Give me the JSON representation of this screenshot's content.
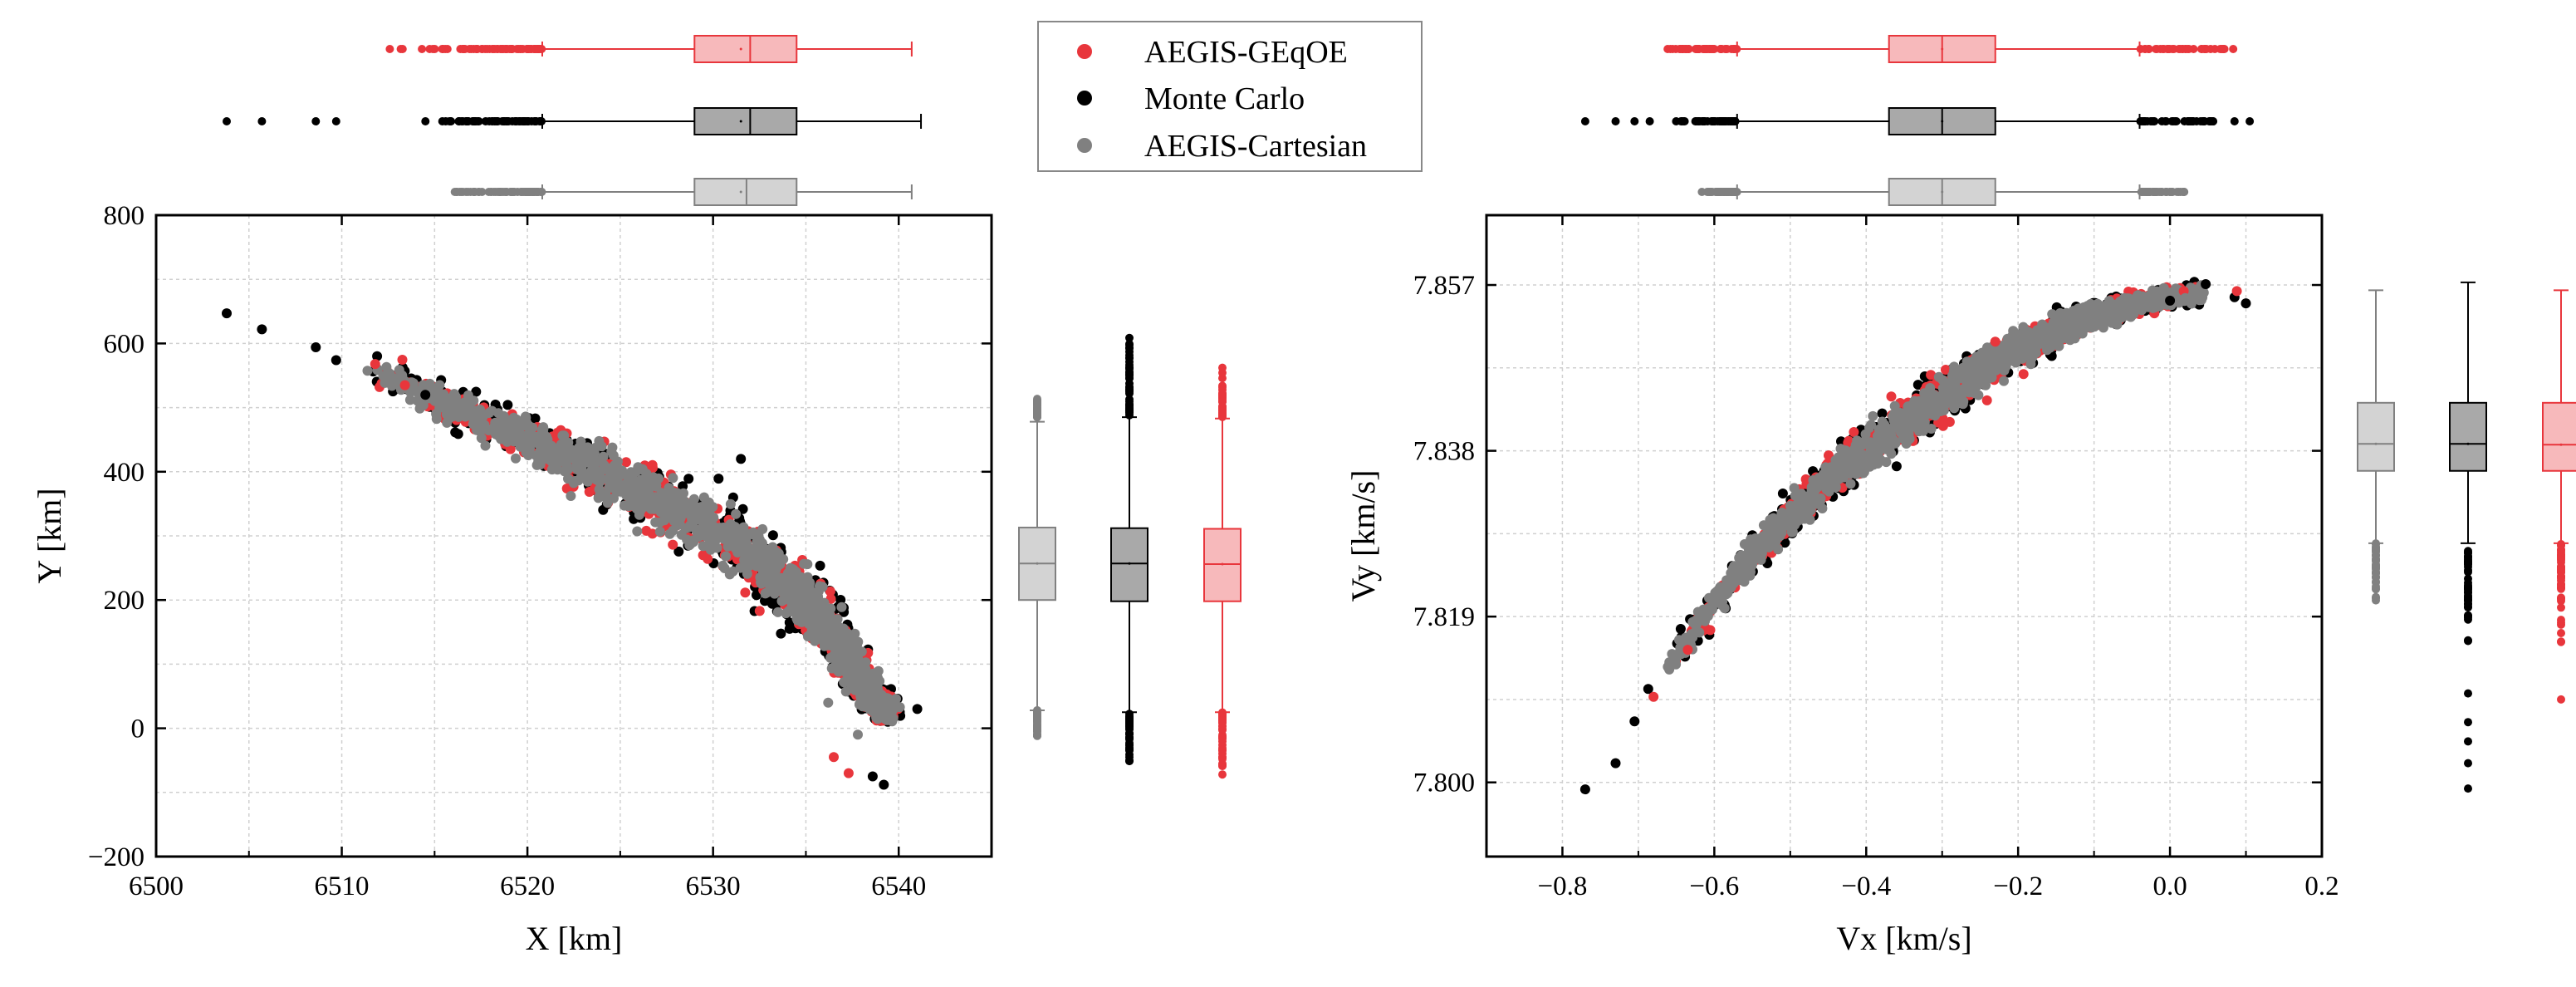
{
  "colors": {
    "geqoe": "#e8363c",
    "geqoe_light": "#f7b9bb",
    "monte_carlo": "#000000",
    "monte_carlo_light": "#a9a9a9",
    "cartesian": "#808080",
    "cartesian_light": "#d3d3d3"
  },
  "legend": {
    "entries": [
      {
        "key": "geqoe",
        "label": "AEGIS-GEqOE"
      },
      {
        "key": "monte_carlo",
        "label": "Monte Carlo"
      },
      {
        "key": "cartesian",
        "label": "AEGIS-Cartesian"
      }
    ]
  },
  "chart_data": [
    {
      "type": "scatter",
      "id": "position",
      "title": "",
      "xlabel": "X [km]",
      "ylabel": "Y [km]",
      "xlim": [
        6500,
        6545
      ],
      "ylim": [
        -200,
        800
      ],
      "xticks": [
        "6500",
        "6510",
        "6520",
        "6530",
        "6540"
      ],
      "yticks": [
        "−200",
        "0",
        "200",
        "400",
        "600",
        "800"
      ],
      "xtick_values": [
        6500,
        6510,
        6520,
        6530,
        6540
      ],
      "ytick_values": [
        -200,
        0,
        200,
        400,
        600,
        800
      ],
      "grid": true,
      "trend": [
        [
          6512,
          560
        ],
        [
          6516,
          500
        ],
        [
          6520,
          450
        ],
        [
          6524,
          400
        ],
        [
          6528,
          340
        ],
        [
          6532,
          275
        ],
        [
          6535,
          200
        ],
        [
          6537,
          120
        ],
        [
          6538.5,
          50
        ],
        [
          6539.5,
          20
        ]
      ],
      "series": [
        {
          "key": "monte_carlo",
          "name": "Monte Carlo",
          "outliers": [
            [
              6503.8,
              647
            ],
            [
              6505.7,
              622
            ],
            [
              6508.6,
              594
            ],
            [
              6509.7,
              574
            ],
            [
              6541,
              30
            ],
            [
              6538.6,
              -75
            ],
            [
              6539.2,
              -88
            ],
            [
              6514.5,
              520
            ],
            [
              6531.5,
              420
            ]
          ]
        },
        {
          "key": "geqoe",
          "name": "AEGIS-GEqOE",
          "outliers": [
            [
              6511.8,
              568
            ],
            [
              6537.3,
              -70
            ],
            [
              6536.5,
              -45
            ],
            [
              6513.4,
              535
            ]
          ]
        },
        {
          "key": "cartesian",
          "name": "AEGIS-Cartesian",
          "outliers": [
            [
              6536.2,
              40
            ],
            [
              6537.8,
              -10
            ]
          ]
        }
      ],
      "marginal_x": [
        {
          "key": "geqoe",
          "whisker_low": 6520.8,
          "q1": 6529.0,
          "median": 6532.0,
          "q3": 6534.5,
          "whisker_high": 6540.7,
          "mean": 6531.5,
          "outlier_range": [
            6511.8,
            6520.8
          ]
        },
        {
          "key": "monte_carlo",
          "whisker_low": 6520.8,
          "q1": 6529.0,
          "median": 6532.0,
          "q3": 6534.5,
          "whisker_high": 6541.2,
          "mean": 6531.5,
          "outlier_range": [
            6513.0,
            6520.8
          ],
          "outliers": [
            6503.8,
            6505.7,
            6508.6,
            6509.7
          ]
        },
        {
          "key": "cartesian",
          "whisker_low": 6520.8,
          "q1": 6529.0,
          "median": 6531.8,
          "q3": 6534.5,
          "whisker_high": 6540.7,
          "mean": 6531.5,
          "outlier_range": [
            6515.4,
            6520.8
          ]
        }
      ],
      "marginal_y": [
        {
          "key": "cartesian",
          "whisker_low": 28,
          "q1": 200,
          "median": 257,
          "q3": 313,
          "whisker_high": 478,
          "mean": 257,
          "outlier_high": [
            485,
            520
          ],
          "outlier_low": [
            -20,
            28
          ]
        },
        {
          "key": "monte_carlo",
          "whisker_low": 25,
          "q1": 198,
          "median": 257,
          "q3": 312,
          "whisker_high": 485,
          "mean": 257,
          "outlier_high": [
            488,
            648
          ],
          "outlier_low": [
            -92,
            25
          ]
        },
        {
          "key": "geqoe",
          "whisker_low": 25,
          "q1": 198,
          "median": 256,
          "q3": 311,
          "whisker_high": 483,
          "mean": 256,
          "outlier_high": [
            485,
            568
          ],
          "outlier_low": [
            -78,
            25
          ]
        }
      ]
    },
    {
      "type": "scatter",
      "id": "velocity",
      "title": "",
      "xlabel": "Vx [km/s]",
      "ylabel": "Vy [km/s]",
      "xlim": [
        -0.9,
        0.2
      ],
      "ylim": [
        7.7915,
        7.865
      ],
      "xticks": [
        "−0.8",
        "−0.6",
        "−0.4",
        "−0.2",
        "0.0",
        "0.2"
      ],
      "yticks": [
        "7.800",
        "7.819",
        "7.838",
        "7.857"
      ],
      "xtick_values": [
        -0.8,
        -0.6,
        -0.4,
        -0.2,
        0.0,
        0.2
      ],
      "ytick_values": [
        7.8,
        7.819,
        7.838,
        7.857
      ],
      "grid": true,
      "trend": [
        [
          -0.66,
          7.8132
        ],
        [
          -0.6,
          7.8205
        ],
        [
          -0.55,
          7.826
        ],
        [
          -0.5,
          7.8305
        ],
        [
          -0.45,
          7.8345
        ],
        [
          -0.4,
          7.838
        ],
        [
          -0.35,
          7.8412
        ],
        [
          -0.3,
          7.8442
        ],
        [
          -0.25,
          7.8472
        ],
        [
          -0.2,
          7.8498
        ],
        [
          -0.15,
          7.8518
        ],
        [
          -0.1,
          7.8534
        ],
        [
          -0.05,
          7.8547
        ],
        [
          0.0,
          7.8556
        ],
        [
          0.04,
          7.856
        ]
      ],
      "series": [
        {
          "key": "monte_carlo",
          "name": "Monte Carlo",
          "outliers": [
            [
              -0.77,
              7.7992
            ],
            [
              -0.73,
              7.8022
            ],
            [
              -0.705,
              7.807
            ],
            [
              -0.687,
              7.8107
            ],
            [
              0.047,
              7.8571
            ],
            [
              0.1,
              7.8549
            ],
            [
              0.085,
              7.8556
            ],
            [
              -0.0,
              7.8552
            ]
          ]
        },
        {
          "key": "geqoe",
          "name": "AEGIS-GEqOE",
          "outliers": [
            [
              -0.68,
              7.8098
            ],
            [
              -0.635,
              7.8152
            ],
            [
              0.088,
              7.8563
            ],
            [
              0.018,
              7.8563
            ],
            [
              -0.23,
              7.8505
            ]
          ]
        },
        {
          "key": "cartesian",
          "name": "AEGIS-Cartesian",
          "outliers": [
            [
              -0.62,
              7.8185
            ],
            [
              0.02,
              7.8555
            ]
          ]
        }
      ],
      "marginal_x": [
        {
          "key": "geqoe",
          "whisker_low": -0.57,
          "q1": -0.37,
          "median": -0.3,
          "q3": -0.23,
          "whisker_high": -0.04,
          "mean": -0.3,
          "outlier_low": [
            -0.68,
            -0.57
          ],
          "outlier_high": [
            -0.04,
            0.09
          ]
        },
        {
          "key": "monte_carlo",
          "whisker_low": -0.57,
          "q1": -0.37,
          "median": -0.3,
          "q3": -0.23,
          "whisker_high": -0.04,
          "mean": -0.3,
          "outlier_low": [
            -0.66,
            -0.57
          ],
          "outlier_high": [
            -0.04,
            0.06
          ],
          "outliers": [
            -0.77,
            -0.73,
            -0.705,
            -0.685,
            0.085,
            0.105
          ]
        },
        {
          "key": "cartesian",
          "whisker_low": -0.57,
          "q1": -0.37,
          "median": -0.3,
          "q3": -0.23,
          "whisker_high": -0.04,
          "mean": -0.3,
          "outlier_low": [
            -0.62,
            -0.57
          ],
          "outlier_high": [
            -0.04,
            0.02
          ]
        }
      ],
      "marginal_y": [
        {
          "key": "cartesian",
          "whisker_low": 7.8274,
          "q1": 7.8357,
          "median": 7.8388,
          "q3": 7.8435,
          "whisker_high": 7.8564,
          "mean": 7.8388,
          "outlier_low": [
            7.8199,
            7.8274
          ]
        },
        {
          "key": "monte_carlo",
          "whisker_low": 7.8274,
          "q1": 7.8357,
          "median": 7.8388,
          "q3": 7.8435,
          "whisker_high": 7.8573,
          "mean": 7.8388,
          "outlier_low": [
            7.813,
            7.8274
          ],
          "outliers": [
            7.8102,
            7.8069,
            7.8047,
            7.8022,
            7.7993
          ]
        },
        {
          "key": "geqoe",
          "whisker_low": 7.8274,
          "q1": 7.8357,
          "median": 7.8387,
          "q3": 7.8435,
          "whisker_high": 7.8564,
          "mean": 7.8387,
          "outlier_low": [
            7.812,
            7.8274
          ],
          "outliers": [
            7.8095
          ]
        }
      ]
    }
  ]
}
